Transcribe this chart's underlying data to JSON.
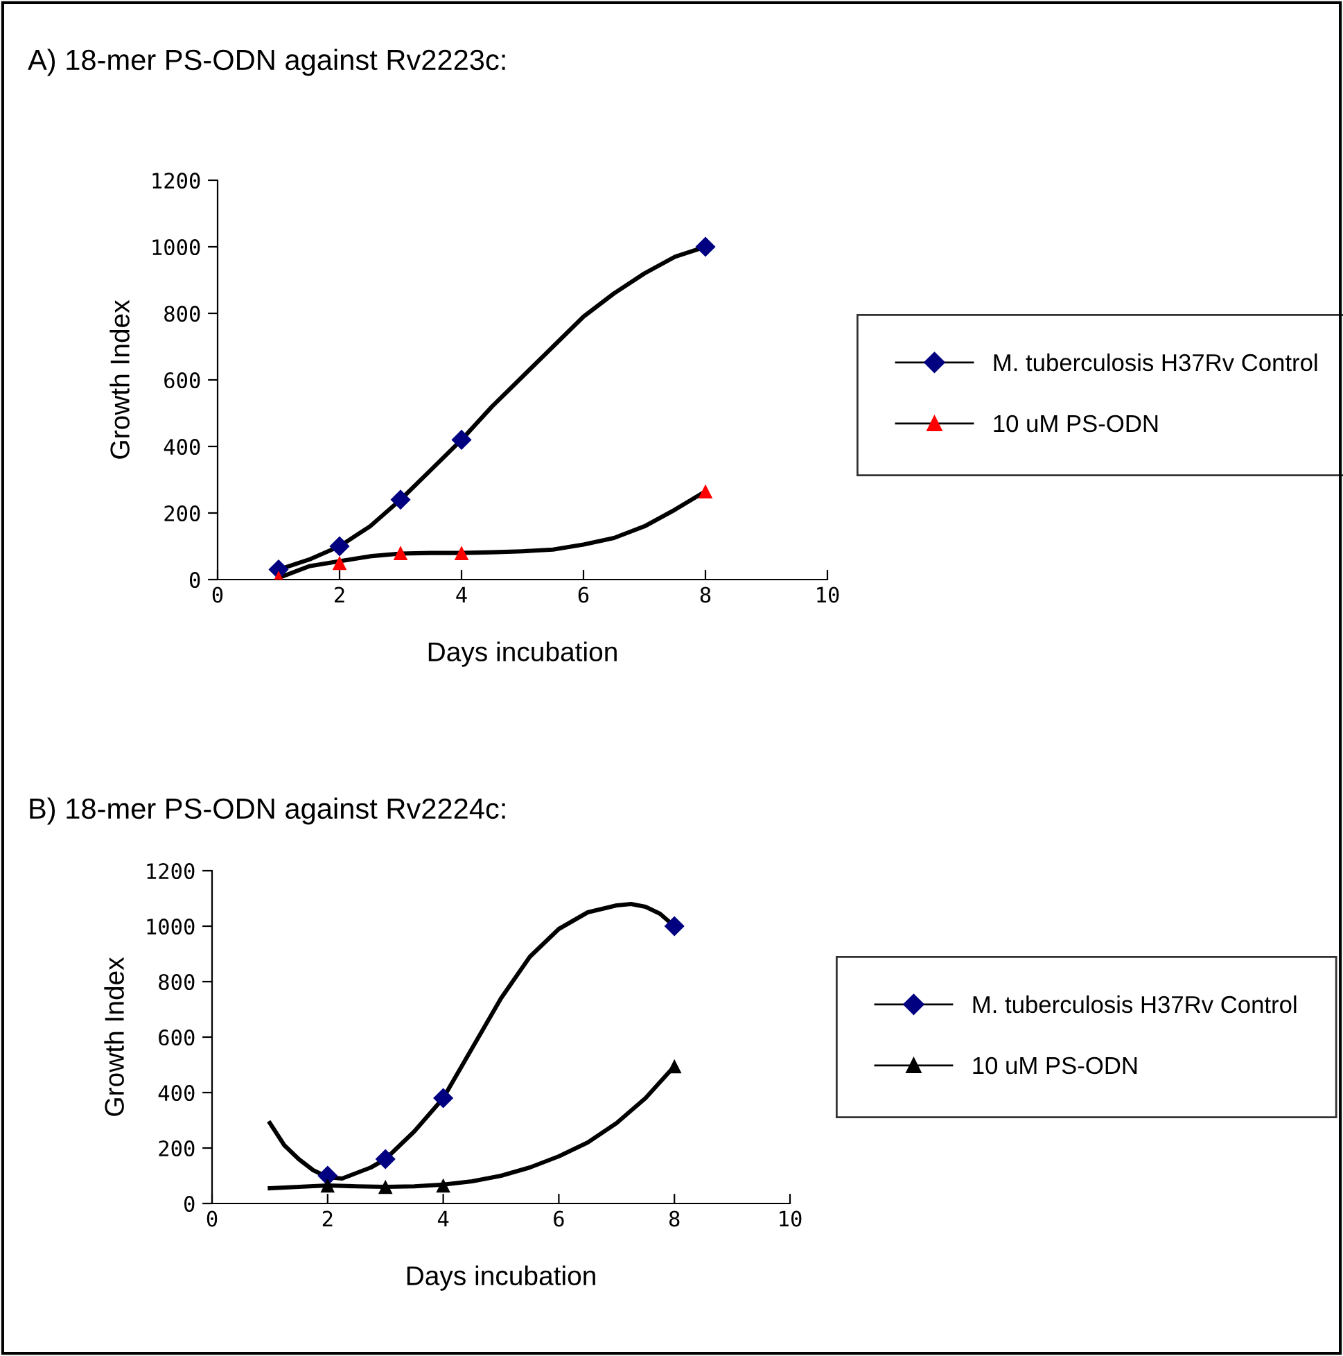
{
  "chart_data": [
    {
      "type": "scatter",
      "title": "A) 18-mer PS-ODN against Rv2223c:",
      "xlabel": "Days incubation",
      "ylabel": "Growth Index",
      "xlim": [
        0,
        10
      ],
      "xticks": [
        0,
        2,
        4,
        6,
        8,
        10
      ],
      "ylim": [
        0,
        1200
      ],
      "yticks": [
        0,
        200,
        400,
        600,
        800,
        1000,
        1200
      ],
      "grid": false,
      "legend": "right",
      "series": [
        {
          "name": "M. tuberculosis H37Rv Control",
          "color": "#000080",
          "marker": "diamond",
          "x": [
            1,
            2,
            3,
            4,
            8
          ],
          "values": [
            30,
            100,
            240,
            420,
            1000
          ]
        },
        {
          "name": "10 uM PS-ODN",
          "color": "#ff0000",
          "marker": "triangle",
          "x": [
            1,
            2,
            3,
            4,
            8
          ],
          "values": [
            5,
            50,
            80,
            80,
            265
          ]
        },
        {
          "type": "line",
          "color": "#000000",
          "x": [
            1,
            1.5,
            2,
            2.5,
            3,
            3.5,
            4,
            4.5,
            5,
            5.5,
            6,
            6.5,
            7,
            7.5,
            8
          ],
          "values": [
            30,
            60,
            100,
            160,
            240,
            330,
            420,
            520,
            610,
            700,
            790,
            860,
            920,
            970,
            1000
          ]
        },
        {
          "type": "line",
          "color": "#000000",
          "x": [
            1,
            1.5,
            2,
            2.5,
            3,
            3.5,
            4,
            4.5,
            5,
            5.5,
            6,
            6.5,
            7,
            7.5,
            8
          ],
          "values": [
            5,
            40,
            55,
            70,
            78,
            80,
            80,
            82,
            85,
            90,
            105,
            125,
            160,
            210,
            265
          ]
        }
      ]
    },
    {
      "type": "scatter",
      "title": "B) 18-mer PS-ODN against Rv2224c:",
      "xlabel": "Days incubation",
      "ylabel": "Growth Index",
      "xlim": [
        0,
        10
      ],
      "xticks": [
        0,
        2,
        4,
        6,
        8,
        10
      ],
      "ylim": [
        0,
        1200
      ],
      "yticks": [
        0,
        200,
        400,
        600,
        800,
        1000,
        1200
      ],
      "grid": false,
      "legend": "right",
      "series": [
        {
          "name": "M. tuberculosis H37Rv Control",
          "color": "#000080",
          "marker": "diamond",
          "x": [
            2,
            3,
            4,
            8
          ],
          "values": [
            100,
            160,
            380,
            1000
          ]
        },
        {
          "name": "10 uM PS-ODN",
          "color": "#000000",
          "marker": "triangle",
          "x": [
            2,
            3,
            4,
            8
          ],
          "values": [
            65,
            60,
            65,
            495
          ]
        },
        {
          "type": "line",
          "color": "#000000",
          "x": [
            1,
            1.25,
            1.5,
            1.75,
            2,
            2.25,
            2.5,
            2.75,
            3,
            3.5,
            4,
            4.5,
            5,
            5.5,
            6,
            6.5,
            7,
            7.25,
            7.5,
            7.75,
            8
          ],
          "values": [
            290,
            210,
            160,
            120,
            95,
            90,
            110,
            130,
            160,
            260,
            380,
            560,
            740,
            890,
            990,
            1050,
            1075,
            1080,
            1070,
            1045,
            1000
          ]
        },
        {
          "type": "line",
          "color": "#000000",
          "x": [
            1,
            1.5,
            2,
            2.5,
            3,
            3.5,
            4,
            4.5,
            5,
            5.5,
            6,
            6.5,
            7,
            7.5,
            8
          ],
          "values": [
            55,
            60,
            65,
            62,
            60,
            62,
            68,
            80,
            100,
            130,
            170,
            220,
            290,
            380,
            495
          ]
        }
      ]
    }
  ]
}
